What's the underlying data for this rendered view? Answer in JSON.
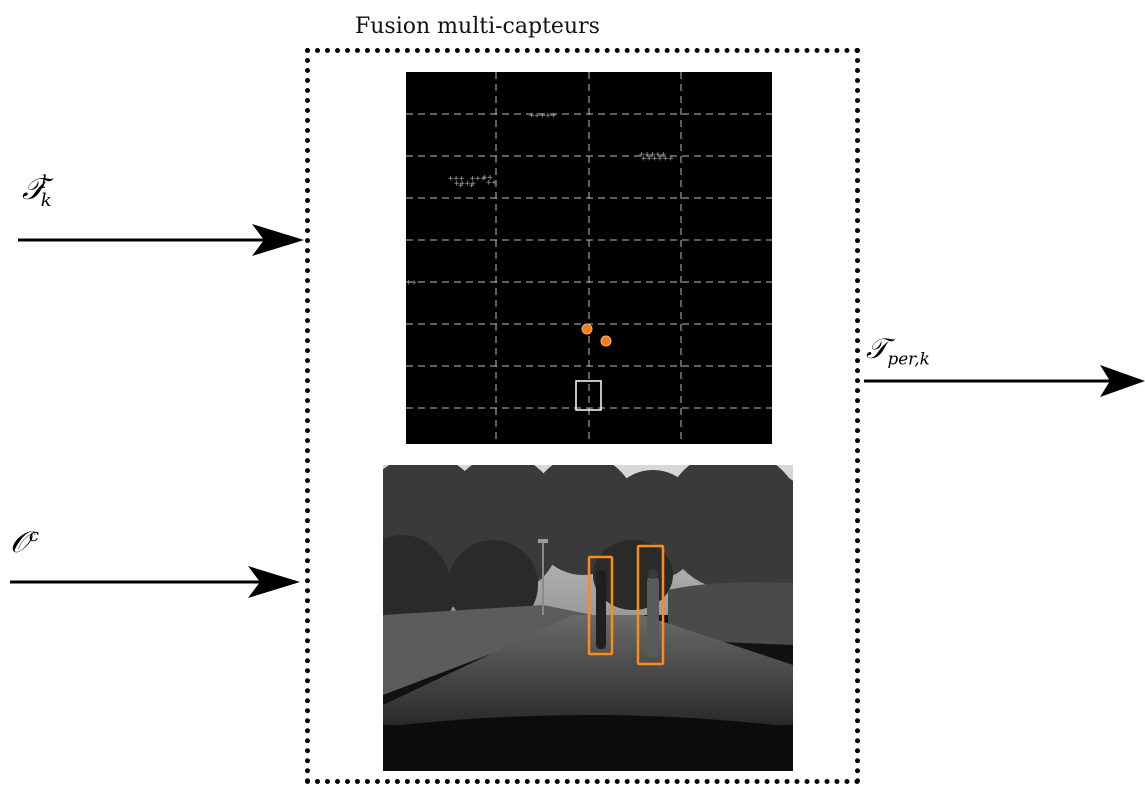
{
  "title": "Fusion multi-capteurs",
  "inputs": {
    "lidar_tracks": {
      "symbol": "𝒯",
      "sup": "l",
      "sub": "k"
    },
    "camera_observations": {
      "symbol": "𝒪",
      "sup": "c"
    }
  },
  "output": {
    "symbol": "𝒯",
    "sub": "per,k"
  },
  "colors": {
    "box_border": "#000000",
    "lidar_background": "#000000",
    "lidar_grid": "#bfbfbf",
    "lidar_points": "#9a9a9a",
    "fused_detections": "#f07d1e",
    "detection_box": "#ff8a1a",
    "ego_vehicle": "#ffffff"
  }
}
